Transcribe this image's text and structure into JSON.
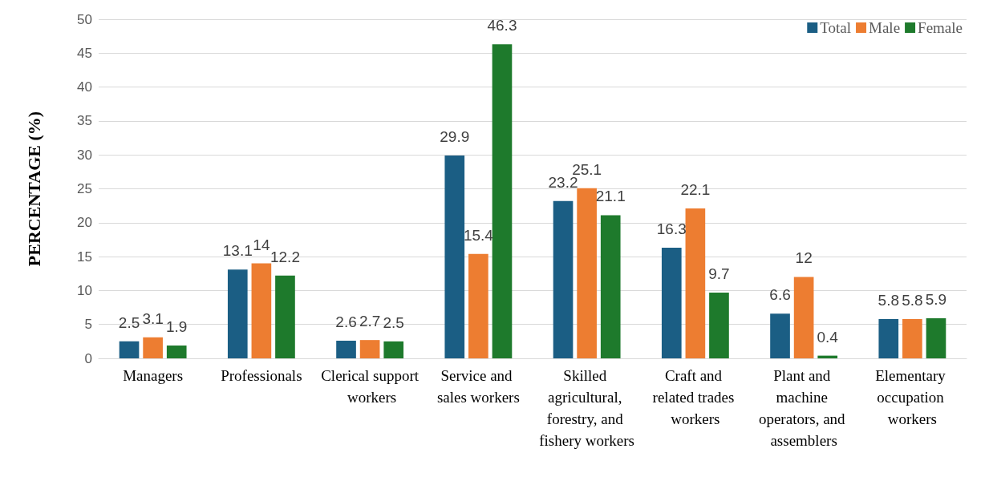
{
  "chart_data": {
    "type": "bar",
    "ylabel": "PERCENTAGE (%)",
    "categories": [
      "Managers",
      "Professionals",
      "Clerical support workers",
      "Service and sales workers",
      "Skilled agricultural, forestry, and fishery workers",
      "Craft and related trades workers",
      "Plant and machine operators, and assemblers",
      "Elementary occupation workers"
    ],
    "series": [
      {
        "name": "Total",
        "color": "#1b5e84",
        "values": [
          2.5,
          13.1,
          2.6,
          29.9,
          23.2,
          16.3,
          6.6,
          5.8
        ]
      },
      {
        "name": "Male",
        "color": "#ed7d31",
        "values": [
          3.1,
          14,
          2.7,
          15.4,
          25.1,
          22.1,
          12,
          5.8
        ]
      },
      {
        "name": "Female",
        "color": "#1e7a2c",
        "values": [
          1.9,
          12.2,
          2.5,
          46.3,
          21.1,
          9.7,
          0.4,
          5.9
        ]
      }
    ],
    "ylim": [
      0,
      50
    ],
    "yticks": [
      0,
      5,
      10,
      15,
      20,
      25,
      30,
      35,
      40,
      45,
      50
    ],
    "grid": "y",
    "legend": "top right",
    "data_labels": true
  }
}
